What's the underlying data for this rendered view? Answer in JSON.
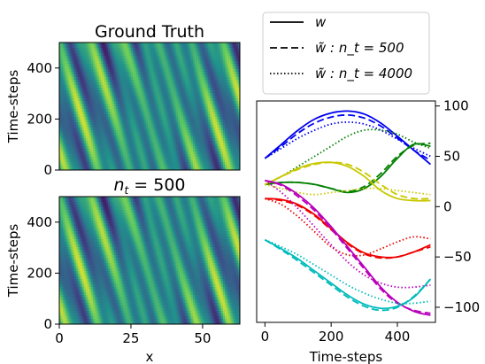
{
  "figure": {
    "heatmap_top_title": "Ground Truth",
    "heatmap_bottom_title": "n_t = 500",
    "heatmap_ylabel": "Time-steps",
    "heatmap_xlabel": "x",
    "line_xlabel": "Time-steps"
  },
  "chart_data": [
    {
      "type": "heatmap",
      "title": "Ground Truth",
      "xlabel": "",
      "ylabel": "Time-steps",
      "xlim": [
        0,
        63
      ],
      "ylim": [
        0,
        500
      ],
      "yticks": [
        0,
        200,
        400
      ],
      "colormap": "viridis",
      "note_bands": "diagonal wave bands"
    },
    {
      "type": "heatmap",
      "title": "n_t = 500",
      "xlabel": "x",
      "ylabel": "Time-steps",
      "xlim": [
        0,
        63
      ],
      "ylim": [
        0,
        500
      ],
      "xticks": [
        0,
        25,
        50
      ],
      "yticks": [
        0,
        200,
        400
      ],
      "colormap": "viridis"
    },
    {
      "type": "line",
      "xlabel": "Time-steps",
      "ylabel": "",
      "xlim": [
        -25,
        515
      ],
      "ylim": [
        -115,
        105
      ],
      "xticks": [
        0,
        200,
        400
      ],
      "yticks": [
        100,
        50,
        0,
        -50,
        -100
      ],
      "yaxis_side": "right",
      "legend": {
        "placement": "top",
        "entries": [
          {
            "label": "w",
            "style": "solid"
          },
          {
            "label": "w̃ : n_t = 500",
            "style": "dashed"
          },
          {
            "label": "w̃ : n_t = 4000",
            "style": "dotted"
          }
        ]
      },
      "x": [
        0,
        50,
        100,
        150,
        200,
        250,
        300,
        350,
        400,
        450,
        500
      ],
      "series": [
        {
          "color": "#0000ee",
          "style": "solid",
          "values": [
            48,
            62,
            76,
            87,
            93,
            95,
            92,
            83,
            70,
            56,
            42
          ]
        },
        {
          "color": "#0000ee",
          "style": "dashed",
          "values": [
            48,
            60,
            73,
            83,
            89,
            91,
            88,
            80,
            68,
            56,
            46
          ]
        },
        {
          "color": "#0000ee",
          "style": "dotted",
          "values": [
            48,
            58,
            68,
            76,
            82,
            84,
            82,
            76,
            67,
            58,
            50
          ]
        },
        {
          "color": "#008000",
          "style": "solid",
          "values": [
            22,
            24,
            24,
            22,
            18,
            14,
            18,
            30,
            48,
            62,
            60
          ]
        },
        {
          "color": "#008000",
          "style": "dashed",
          "values": [
            22,
            24,
            24,
            22,
            18,
            15,
            20,
            33,
            50,
            61,
            63
          ]
        },
        {
          "color": "#008000",
          "style": "dotted",
          "values": [
            22,
            30,
            40,
            50,
            60,
            70,
            76,
            76,
            72,
            64,
            58
          ]
        },
        {
          "color": "#c8c800",
          "style": "solid",
          "values": [
            22,
            30,
            38,
            43,
            44,
            40,
            30,
            16,
            8,
            6,
            6
          ]
        },
        {
          "color": "#c8c800",
          "style": "dashed",
          "values": [
            22,
            30,
            37,
            42,
            44,
            42,
            34,
            22,
            12,
            8,
            8
          ]
        },
        {
          "color": "#c8c800",
          "style": "dotted",
          "values": [
            22,
            18,
            14,
            12,
            14,
            16,
            18,
            18,
            16,
            14,
            12
          ]
        },
        {
          "color": "#ee0000",
          "style": "solid",
          "values": [
            8,
            7,
            2,
            -8,
            -22,
            -36,
            -46,
            -50,
            -50,
            -45,
            -38
          ]
        },
        {
          "color": "#ee0000",
          "style": "dashed",
          "values": [
            8,
            6,
            1,
            -9,
            -23,
            -37,
            -47,
            -51,
            -50,
            -45,
            -40
          ]
        },
        {
          "color": "#ee0000",
          "style": "dotted",
          "values": [
            8,
            2,
            -10,
            -25,
            -40,
            -48,
            -48,
            -42,
            -35,
            -30,
            -32
          ]
        },
        {
          "color": "#bb00bb",
          "style": "solid",
          "values": [
            26,
            22,
            12,
            -2,
            -20,
            -40,
            -60,
            -80,
            -95,
            -104,
            -108
          ]
        },
        {
          "color": "#bb00bb",
          "style": "dashed",
          "values": [
            26,
            21,
            10,
            -4,
            -22,
            -42,
            -62,
            -82,
            -96,
            -103,
            -106
          ]
        },
        {
          "color": "#bb00bb",
          "style": "dotted",
          "values": [
            26,
            14,
            -2,
            -20,
            -38,
            -55,
            -68,
            -76,
            -80,
            -80,
            -78
          ]
        },
        {
          "color": "#00bbbb",
          "style": "solid",
          "values": [
            -33,
            -42,
            -52,
            -64,
            -76,
            -88,
            -97,
            -101,
            -99,
            -90,
            -72
          ]
        },
        {
          "color": "#00bbbb",
          "style": "dashed",
          "values": [
            -33,
            -43,
            -54,
            -66,
            -78,
            -90,
            -99,
            -103,
            -100,
            -89,
            -72
          ]
        },
        {
          "color": "#00bbbb",
          "style": "dotted",
          "values": [
            -33,
            -40,
            -48,
            -58,
            -68,
            -78,
            -86,
            -92,
            -96,
            -96,
            -94
          ]
        }
      ]
    }
  ]
}
